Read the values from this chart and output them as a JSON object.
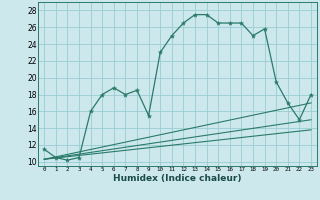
{
  "xlabel": "Humidex (Indice chaleur)",
  "bg_color": "#cce8ec",
  "grid_color": "#99ccd4",
  "line_color": "#2a7a6a",
  "xlim": [
    -0.5,
    23.5
  ],
  "ylim": [
    9.5,
    29.0
  ],
  "xticks": [
    0,
    1,
    2,
    3,
    4,
    5,
    6,
    7,
    8,
    9,
    10,
    11,
    12,
    13,
    14,
    15,
    16,
    17,
    18,
    19,
    20,
    21,
    22,
    23
  ],
  "yticks": [
    10,
    12,
    14,
    16,
    18,
    20,
    22,
    24,
    26,
    28
  ],
  "main_x": [
    0,
    1,
    2,
    3,
    4,
    5,
    6,
    7,
    8,
    9,
    10,
    11,
    12,
    13,
    14,
    15,
    16,
    17,
    18,
    19,
    20,
    21,
    22,
    23
  ],
  "main_y": [
    11.5,
    10.5,
    10.2,
    10.5,
    16.0,
    18.0,
    18.8,
    18.0,
    18.5,
    15.5,
    23.0,
    25.0,
    26.5,
    27.5,
    27.5,
    26.5,
    26.5,
    26.5,
    25.0,
    25.8,
    19.5,
    17.0,
    15.0,
    18.0
  ],
  "line2_x": [
    0,
    23
  ],
  "line2_y": [
    10.3,
    17.0
  ],
  "line3_x": [
    0,
    23
  ],
  "line3_y": [
    10.3,
    15.0
  ],
  "line4_x": [
    0,
    23
  ],
  "line4_y": [
    10.3,
    13.8
  ]
}
